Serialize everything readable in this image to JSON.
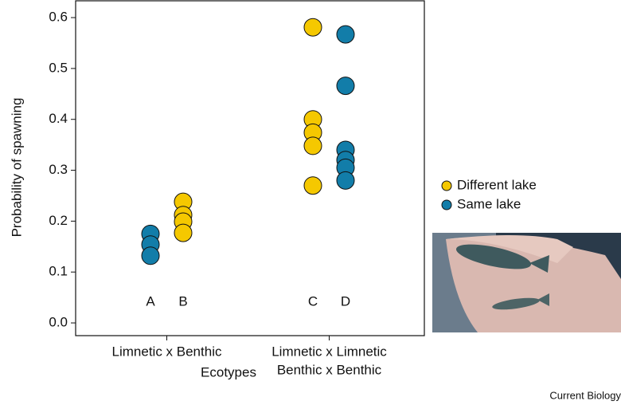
{
  "chart_data": {
    "type": "dot",
    "y_label": "Probability of spawning",
    "x_label": "Ecotypes",
    "categories": [
      "A",
      "B",
      "C",
      "D"
    ],
    "groups": [
      [
        "Limnetic x Benthic"
      ],
      [
        "Limnetic x Limnetic",
        "Benthic x Benthic"
      ]
    ],
    "ylim": [
      -0.025,
      0.633
    ],
    "yticks": [
      {
        "value": 0,
        "label": "0.0"
      },
      0.1,
      0.2,
      0.3,
      0.4,
      0.5,
      0.6
    ],
    "legend": "right",
    "series": [
      {
        "name": "Different lake",
        "color": "#f5c800",
        "x": [
          "B",
          "B",
          "B",
          "B",
          "C",
          "C",
          "C",
          "C",
          "C"
        ],
        "values": [
          0.238,
          0.212,
          0.199,
          0.177,
          0.581,
          0.4,
          0.374,
          0.348,
          0.27
        ]
      },
      {
        "name": "Same lake",
        "color": "#127da9",
        "x": [
          "A",
          "A",
          "A",
          "D",
          "D",
          "D",
          "D",
          "D",
          "D"
        ],
        "values": [
          0.175,
          0.154,
          0.132,
          0.567,
          0.466,
          0.34,
          0.32,
          0.305,
          0.28
        ]
      }
    ],
    "credit": "Current Biology"
  }
}
